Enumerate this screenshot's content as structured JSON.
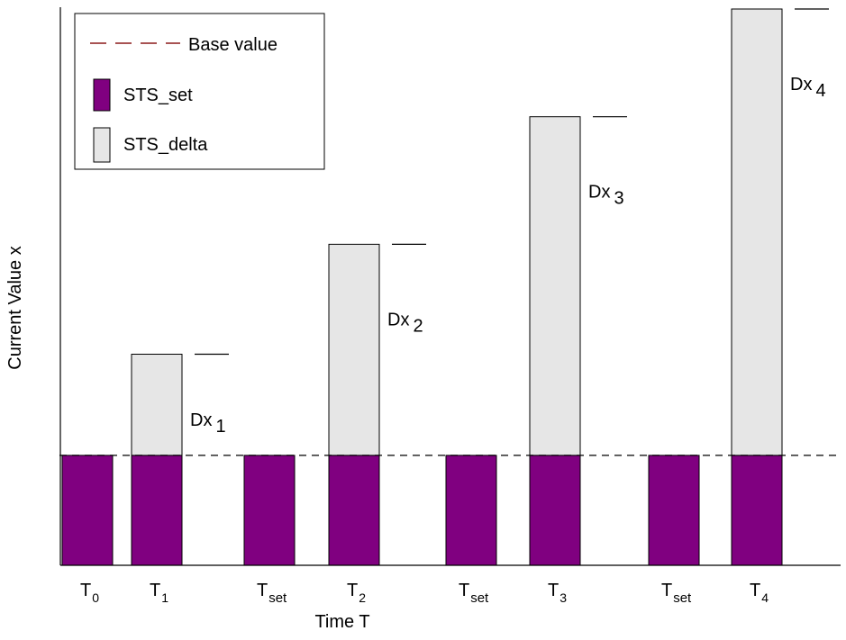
{
  "chart_data": {
    "type": "bar",
    "stacked": true,
    "categories": [
      {
        "main": "T",
        "sub": "0"
      },
      {
        "main": "T",
        "sub": "1"
      },
      {
        "main": "T",
        "sub": "set"
      },
      {
        "main": "T",
        "sub": "2"
      },
      {
        "main": "T",
        "sub": "set"
      },
      {
        "main": "T",
        "sub": "3"
      },
      {
        "main": "T",
        "sub": "set"
      },
      {
        "main": "T",
        "sub": "4"
      }
    ],
    "series": [
      {
        "name": "STS_set",
        "values": [
          1,
          1,
          1,
          1,
          1,
          1,
          1,
          1
        ]
      },
      {
        "name": "STS_delta",
        "values": [
          0,
          0.92,
          0,
          1.92,
          0,
          3.08,
          0,
          4.06
        ]
      }
    ],
    "ylim": [
      0,
      5.06
    ],
    "base_value": 1,
    "delta_labels": [
      {
        "index": 1,
        "main": "Dx",
        "sub": "1"
      },
      {
        "index": 3,
        "main": "Dx",
        "sub": "2"
      },
      {
        "index": 5,
        "main": "Dx",
        "sub": "3"
      },
      {
        "index": 7,
        "main": "Dx",
        "sub": "4"
      }
    ],
    "xlabel": "Time T",
    "ylabel": "Current Value x",
    "legend": {
      "position": "top-left",
      "items": [
        {
          "name": "Base value",
          "kind": "dashed-line"
        },
        {
          "name": "STS_set",
          "kind": "box"
        },
        {
          "name": "STS_delta",
          "kind": "box"
        }
      ]
    },
    "grid": false,
    "colors": {
      "sts_set": "#800080",
      "sts_delta": "#e6e6e6",
      "base_value_legend": "#8b1a1a",
      "base_line": "#000000"
    }
  }
}
